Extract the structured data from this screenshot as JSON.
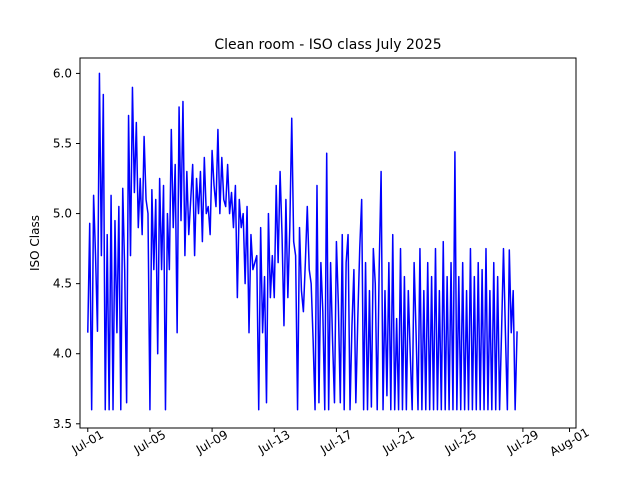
{
  "chart_data": {
    "type": "line",
    "title": "Clean room - ISO class July 2025",
    "xlabel": "",
    "ylabel": "ISO Class",
    "x_ticks": [
      "Jul-01",
      "Jul-05",
      "Jul-09",
      "Jul-13",
      "Jul-17",
      "Jul-21",
      "Jul-25",
      "Jul-29",
      "Aug-01"
    ],
    "x_tick_values": [
      "2025-07-01",
      "2025-07-05",
      "2025-07-09",
      "2025-07-13",
      "2025-07-17",
      "2025-07-21",
      "2025-07-25",
      "2025-07-29",
      "2025-08-01"
    ],
    "xlim": [
      "2025-06-30T12:00",
      "2025-08-01T10:00"
    ],
    "y_ticks": [
      "3.5",
      "4.0",
      "4.5",
      "5.0",
      "5.5",
      "6.0"
    ],
    "y_tick_values": [
      3.5,
      4.0,
      4.5,
      5.0,
      5.5,
      6.0
    ],
    "ylim": [
      3.47,
      6.11
    ],
    "grid": false,
    "legend": "none",
    "series": [
      {
        "color": "#0000ff",
        "step_hours": 3,
        "start": "2025-07-01T00:00",
        "values": [
          4.15,
          4.93,
          3.6,
          5.13,
          4.7,
          4.16,
          6.0,
          4.7,
          5.85,
          3.6,
          4.85,
          3.6,
          5.13,
          3.6,
          4.95,
          4.15,
          5.05,
          3.6,
          5.18,
          4.6,
          3.65,
          5.7,
          4.7,
          5.9,
          5.15,
          5.65,
          4.9,
          5.25,
          4.85,
          5.55,
          5.1,
          5.0,
          3.6,
          5.17,
          4.6,
          5.1,
          4.0,
          5.25,
          4.6,
          5.2,
          3.6,
          5.0,
          4.6,
          5.6,
          4.9,
          5.35,
          4.15,
          5.76,
          4.95,
          5.8,
          4.7,
          5.3,
          4.85,
          5.1,
          5.35,
          4.7,
          5.25,
          5.0,
          5.3,
          4.8,
          5.4,
          5.0,
          5.05,
          4.85,
          5.45,
          5.2,
          5.05,
          5.6,
          5.0,
          5.4,
          5.1,
          5.05,
          5.35,
          5.0,
          5.15,
          4.9,
          5.2,
          4.4,
          5.1,
          4.9,
          5.0,
          4.5,
          5.05,
          4.15,
          4.85,
          4.6,
          4.65,
          4.7,
          3.6,
          4.9,
          4.15,
          4.55,
          3.65,
          5.0,
          4.4,
          4.7,
          4.4,
          5.2,
          4.65,
          5.3,
          4.85,
          4.2,
          5.1,
          4.4,
          4.9,
          5.68,
          4.8,
          4.7,
          3.6,
          4.9,
          4.45,
          4.3,
          4.65,
          5.05,
          4.6,
          4.5,
          4.1,
          3.6,
          5.2,
          3.65,
          4.65,
          4.3,
          3.6,
          5.43,
          3.6,
          4.65,
          4.1,
          3.65,
          4.8,
          4.35,
          3.65,
          4.85,
          3.6,
          4.65,
          4.85,
          3.6,
          4.2,
          4.6,
          3.65,
          4.25,
          4.75,
          5.1,
          3.6,
          4.65,
          3.6,
          4.45,
          3.62,
          4.75,
          4.5,
          3.6,
          4.6,
          5.3,
          3.6,
          4.45,
          3.7,
          4.65,
          3.6,
          4.85,
          3.6,
          4.25,
          3.6,
          4.75,
          3.6,
          4.55,
          3.6,
          4.45,
          4.0,
          3.6,
          4.65,
          4.15,
          3.6,
          4.75,
          3.6,
          4.45,
          3.6,
          4.65,
          3.6,
          4.55,
          3.6,
          4.75,
          3.6,
          4.45,
          3.6,
          4.8,
          3.6,
          4.55,
          3.6,
          4.65,
          3.6,
          5.44,
          3.6,
          4.55,
          3.6,
          4.65,
          3.6,
          4.45,
          3.6,
          4.75,
          3.6,
          4.55,
          3.6,
          4.65,
          3.6,
          4.6,
          3.6,
          4.75,
          3.6,
          4.45,
          3.6,
          4.65,
          3.6,
          4.55,
          3.6,
          4.15,
          4.75,
          4.15,
          3.6,
          4.74,
          4.15,
          4.45,
          3.6,
          4.16
        ]
      }
    ]
  }
}
